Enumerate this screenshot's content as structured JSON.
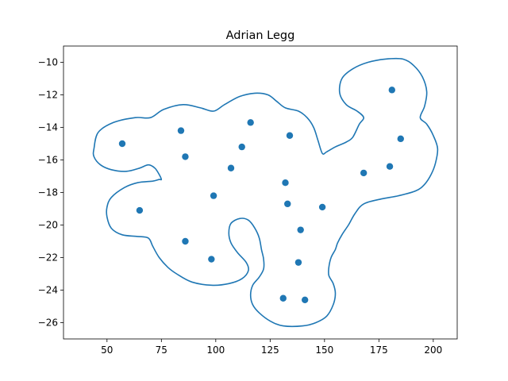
{
  "chart_data": {
    "type": "scatter",
    "title": "Adrian Legg",
    "xlabel": "",
    "ylabel": "",
    "xlim": [
      30,
      211
    ],
    "ylim": [
      -27,
      -9
    ],
    "xticks": [
      50,
      75,
      100,
      125,
      150,
      175,
      200
    ],
    "yticks": [
      -10,
      -12,
      -14,
      -16,
      -18,
      -20,
      -22,
      -24,
      -26
    ],
    "grid": false,
    "legend": "none",
    "point_color": "#1f77b4",
    "outline_color": "#1f77b4",
    "points": [
      {
        "x": 57,
        "y": -15.0
      },
      {
        "x": 84,
        "y": -14.2
      },
      {
        "x": 86,
        "y": -15.8
      },
      {
        "x": 116,
        "y": -13.7
      },
      {
        "x": 112,
        "y": -15.2
      },
      {
        "x": 107,
        "y": -16.5
      },
      {
        "x": 134,
        "y": -14.5
      },
      {
        "x": 132,
        "y": -17.4
      },
      {
        "x": 99,
        "y": -18.2
      },
      {
        "x": 133,
        "y": -18.7
      },
      {
        "x": 149,
        "y": -18.9
      },
      {
        "x": 65,
        "y": -19.1
      },
      {
        "x": 139,
        "y": -20.3
      },
      {
        "x": 86,
        "y": -21.0
      },
      {
        "x": 98,
        "y": -22.1
      },
      {
        "x": 138,
        "y": -22.3
      },
      {
        "x": 131,
        "y": -24.5
      },
      {
        "x": 141,
        "y": -24.6
      },
      {
        "x": 181,
        "y": -11.7
      },
      {
        "x": 185,
        "y": -14.7
      },
      {
        "x": 168,
        "y": -16.8
      },
      {
        "x": 180,
        "y": -16.4
      }
    ],
    "outline": [
      [
        44,
        -15.3
      ],
      [
        46,
        -14.3
      ],
      [
        53,
        -13.7
      ],
      [
        63,
        -13.4
      ],
      [
        70,
        -13.4
      ],
      [
        76,
        -12.9
      ],
      [
        85,
        -12.6
      ],
      [
        93,
        -12.8
      ],
      [
        99,
        -13.0
      ],
      [
        104,
        -12.6
      ],
      [
        111,
        -12.1
      ],
      [
        118,
        -11.9
      ],
      [
        124,
        -12.0
      ],
      [
        128,
        -12.4
      ],
      [
        132,
        -12.8
      ],
      [
        138,
        -13.0
      ],
      [
        142,
        -13.4
      ],
      [
        145,
        -14.0
      ],
      [
        147,
        -14.8
      ],
      [
        149,
        -15.6
      ],
      [
        151,
        -15.5
      ],
      [
        155,
        -15.2
      ],
      [
        160,
        -14.9
      ],
      [
        163,
        -14.6
      ],
      [
        166,
        -13.8
      ],
      [
        168,
        -13.4
      ],
      [
        165,
        -13.0
      ],
      [
        160,
        -12.6
      ],
      [
        157,
        -11.9
      ],
      [
        158,
        -11.0
      ],
      [
        163,
        -10.4
      ],
      [
        170,
        -10.0
      ],
      [
        178,
        -9.8
      ],
      [
        186,
        -9.8
      ],
      [
        191,
        -10.2
      ],
      [
        195,
        -10.9
      ],
      [
        197,
        -11.8
      ],
      [
        196,
        -12.7
      ],
      [
        194,
        -13.4
      ],
      [
        197,
        -13.8
      ],
      [
        200,
        -14.5
      ],
      [
        202,
        -15.3
      ],
      [
        201,
        -16.2
      ],
      [
        199,
        -16.9
      ],
      [
        196,
        -17.5
      ],
      [
        192,
        -17.9
      ],
      [
        184,
        -18.2
      ],
      [
        176,
        -18.4
      ],
      [
        168,
        -18.7
      ],
      [
        164,
        -19.3
      ],
      [
        161,
        -20.0
      ],
      [
        158,
        -20.6
      ],
      [
        156,
        -21.1
      ],
      [
        155,
        -21.5
      ],
      [
        153,
        -22.0
      ],
      [
        152,
        -22.6
      ],
      [
        152,
        -23.1
      ],
      [
        154,
        -23.6
      ],
      [
        155,
        -24.2
      ],
      [
        154,
        -24.9
      ],
      [
        151,
        -25.6
      ],
      [
        146,
        -26.0
      ],
      [
        140,
        -26.2
      ],
      [
        131,
        -26.2
      ],
      [
        125,
        -25.9
      ],
      [
        120,
        -25.4
      ],
      [
        117,
        -24.9
      ],
      [
        116,
        -24.3
      ],
      [
        117,
        -23.7
      ],
      [
        120,
        -23.2
      ],
      [
        122,
        -22.7
      ],
      [
        122,
        -22.1
      ],
      [
        121,
        -21.5
      ],
      [
        120,
        -20.8
      ],
      [
        118,
        -20.2
      ],
      [
        115,
        -19.7
      ],
      [
        111,
        -19.6
      ],
      [
        107,
        -19.9
      ],
      [
        106,
        -20.5
      ],
      [
        107,
        -21.1
      ],
      [
        110,
        -21.7
      ],
      [
        114,
        -22.3
      ],
      [
        115,
        -22.8
      ],
      [
        112,
        -23.3
      ],
      [
        106,
        -23.6
      ],
      [
        98,
        -23.7
      ],
      [
        89,
        -23.5
      ],
      [
        82,
        -23.0
      ],
      [
        78,
        -22.6
      ],
      [
        74,
        -22.0
      ],
      [
        71,
        -21.3
      ],
      [
        69,
        -20.8
      ],
      [
        64,
        -20.7
      ],
      [
        57,
        -20.6
      ],
      [
        52,
        -20.2
      ],
      [
        50,
        -19.5
      ],
      [
        50,
        -18.9
      ],
      [
        52,
        -18.3
      ],
      [
        58,
        -17.7
      ],
      [
        64,
        -17.4
      ],
      [
        71,
        -17.3
      ],
      [
        74,
        -17.2
      ],
      [
        75,
        -17.2
      ],
      [
        74,
        -16.9
      ],
      [
        72,
        -16.5
      ],
      [
        69,
        -16.3
      ],
      [
        65,
        -16.5
      ],
      [
        59,
        -16.7
      ],
      [
        52,
        -16.6
      ],
      [
        47,
        -16.3
      ],
      [
        44,
        -15.8
      ]
    ]
  }
}
